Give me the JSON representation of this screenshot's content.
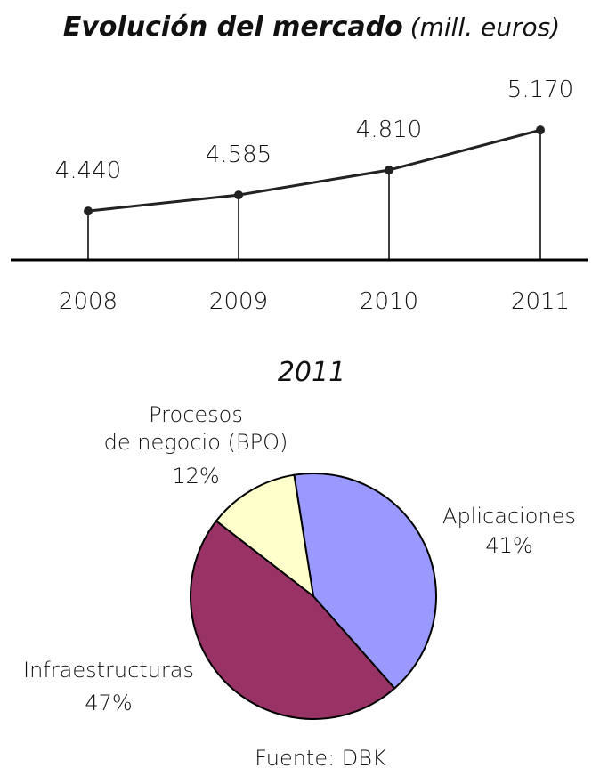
{
  "chart_data": [
    {
      "type": "line",
      "title": "Evolución del mercado",
      "subtitle": "(mill. euros)",
      "categories": [
        "2008",
        "2009",
        "2010",
        "2011"
      ],
      "values": [
        4440,
        4585,
        4810,
        5170
      ],
      "value_labels": [
        "4.440",
        "4.585",
        "4.810",
        "5.170"
      ],
      "color": "#222222",
      "ylim": [
        4000,
        5400
      ]
    },
    {
      "type": "pie",
      "title": "2011",
      "categories": [
        "Aplicaciones",
        "Infraestructuras",
        "Procesos\nde negocio (BPO)"
      ],
      "values": [
        41,
        47,
        12
      ],
      "value_labels": [
        "41%",
        "47%",
        "12%"
      ],
      "colors": [
        "#9999ff",
        "#993366",
        "#ffffcc"
      ]
    }
  ],
  "source": "Fuente: DBK"
}
